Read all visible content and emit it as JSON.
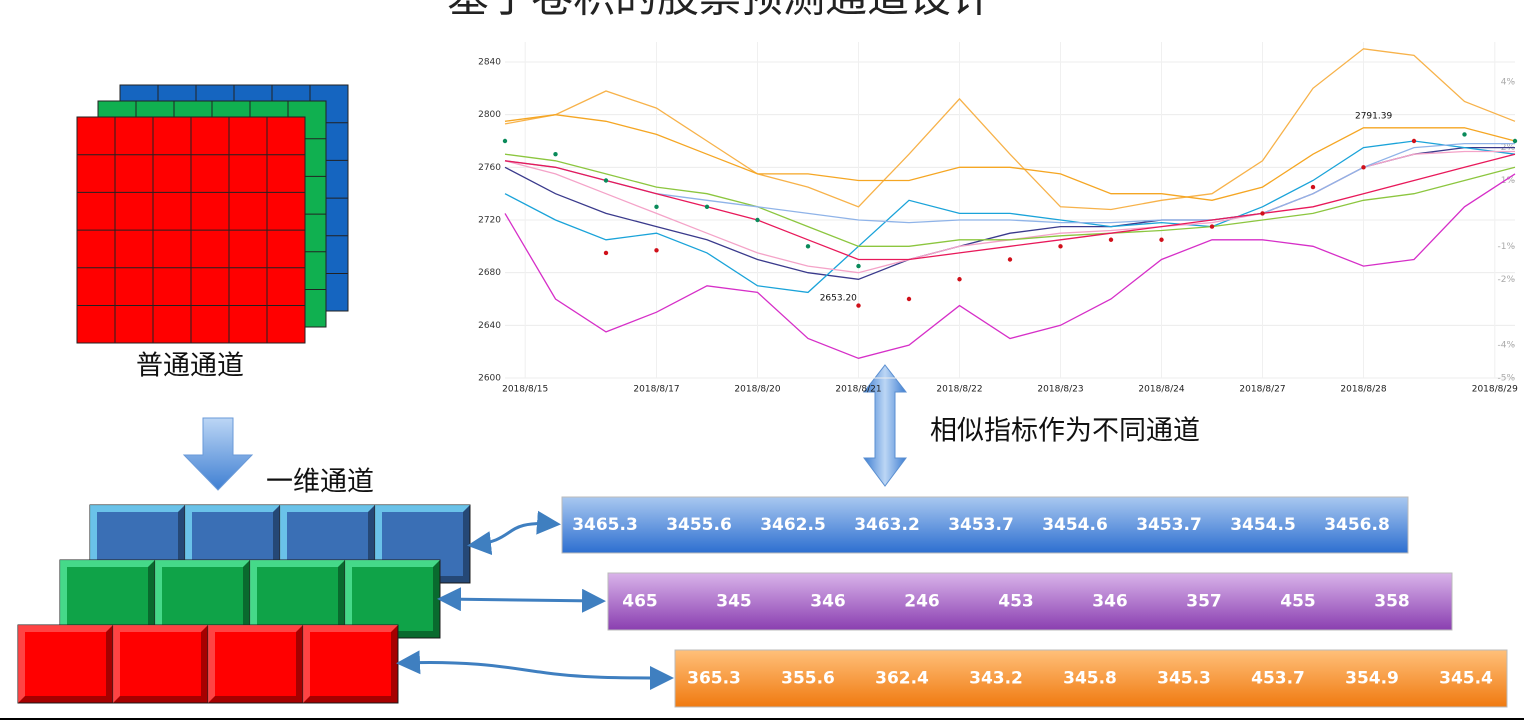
{
  "title": "基于卷积的股票预测通道设计",
  "labels": {
    "normal": "普通通道",
    "one_dim": "一维通道",
    "similar": "相似指标作为不同通道"
  },
  "chart_data": {
    "type": "line",
    "x": [
      0,
      5,
      10,
      15,
      20,
      25,
      30,
      35,
      40,
      45,
      50,
      55,
      60,
      65,
      70,
      75,
      80,
      85,
      90,
      95,
      100
    ],
    "xlim": [
      0,
      100
    ],
    "xticks": [
      {
        "value": 2,
        "label": "2018/8/15"
      },
      {
        "value": 15,
        "label": "2018/8/17"
      },
      {
        "value": 25,
        "label": "2018/8/20"
      },
      {
        "value": 35,
        "label": "2018/8/21"
      },
      {
        "value": 45,
        "label": "2018/8/22"
      },
      {
        "value": 55,
        "label": "2018/8/23"
      },
      {
        "value": 65,
        "label": "2018/8/24"
      },
      {
        "value": 75,
        "label": "2018/8/27"
      },
      {
        "value": 85,
        "label": "2018/8/28"
      },
      {
        "value": 98,
        "label": "2018/8/29"
      }
    ],
    "ylim": [
      2600,
      2840
    ],
    "yticks": [
      2600,
      2640,
      2680,
      2720,
      2760,
      2800,
      2840
    ],
    "y2lim": [
      -5,
      4.6
    ],
    "y2ticks": [
      {
        "value": -5,
        "label": "-5%"
      },
      {
        "value": -4,
        "label": "-4%"
      },
      {
        "value": -2,
        "label": "-2%"
      },
      {
        "value": -1,
        "label": "-1%"
      },
      {
        "value": 1,
        "label": "1%"
      },
      {
        "value": 2,
        "label": "2%"
      },
      {
        "value": 4,
        "label": "4%"
      }
    ],
    "grid": true,
    "series": [
      {
        "color": "#f7b24a",
        "values": [
          2793,
          2800,
          2818,
          2805,
          2780,
          2755,
          2745,
          2730,
          2770,
          2812,
          2770,
          2730,
          2728,
          2735,
          2740,
          2765,
          2820,
          2850,
          2845,
          2810,
          2795
        ]
      },
      {
        "color": "#f5a623",
        "values": [
          2795,
          2800,
          2795,
          2785,
          2770,
          2755,
          2755,
          2750,
          2750,
          2760,
          2760,
          2755,
          2740,
          2740,
          2735,
          2745,
          2770,
          2790,
          2790,
          2790,
          2780
        ]
      },
      {
        "color": "#d62fc8",
        "values": [
          2725,
          2660,
          2635,
          2650,
          2670,
          2665,
          2630,
          2615,
          2625,
          2655,
          2630,
          2640,
          2660,
          2690,
          2705,
          2705,
          2700,
          2685,
          2690,
          2730,
          2755
        ]
      },
      {
        "color": "#3a3a8c",
        "values": [
          2760,
          2740,
          2725,
          2715,
          2705,
          2690,
          2680,
          2675,
          2690,
          2700,
          2710,
          2715,
          2715,
          2720,
          2720,
          2725,
          2740,
          2760,
          2770,
          2775,
          2775
        ]
      },
      {
        "color": "#1aa3d9",
        "values": [
          2740,
          2720,
          2705,
          2710,
          2695,
          2670,
          2665,
          2700,
          2735,
          2725,
          2725,
          2720,
          2715,
          2718,
          2715,
          2730,
          2750,
          2775,
          2780,
          2775,
          2770
        ]
      },
      {
        "color": "#f4a3c8",
        "values": [
          2765,
          2755,
          2740,
          2725,
          2710,
          2695,
          2685,
          2680,
          2690,
          2700,
          2705,
          2710,
          2712,
          2715,
          2718,
          2725,
          2740,
          2760,
          2770,
          2772,
          2772
        ]
      },
      {
        "color": "#8cc63f",
        "values": [
          2770,
          2765,
          2755,
          2745,
          2740,
          2730,
          2715,
          2700,
          2700,
          2705,
          2705,
          2708,
          2710,
          2712,
          2715,
          2720,
          2725,
          2735,
          2740,
          2750,
          2760
        ]
      },
      {
        "color": "#8fb3e8",
        "values": [
          2765,
          2760,
          2750,
          2740,
          2735,
          2730,
          2725,
          2720,
          2718,
          2720,
          2720,
          2718,
          2718,
          2720,
          2720,
          2725,
          2740,
          2760,
          2775,
          2778,
          2778
        ]
      },
      {
        "color": "#e8195a",
        "values": [
          2765,
          2760,
          2750,
          2740,
          2730,
          2720,
          2705,
          2690,
          2690,
          2695,
          2700,
          2705,
          2710,
          2715,
          2720,
          2725,
          2730,
          2740,
          2750,
          2760,
          2770
        ]
      },
      {
        "color": "#0a8a5a",
        "dots": true,
        "values": [
          2780,
          2770,
          2750,
          2730,
          2730,
          2720,
          2700,
          2685,
          null,
          null,
          null,
          null,
          null,
          null,
          null,
          null,
          null,
          null,
          null,
          2785,
          2780
        ]
      },
      {
        "color": "#d0101a",
        "dots": true,
        "values": [
          null,
          null,
          2695,
          2697,
          null,
          null,
          null,
          2655,
          2660,
          2675,
          2690,
          2700,
          2705,
          2705,
          2715,
          2725,
          2745,
          2760,
          2780,
          null,
          null
        ]
      }
    ],
    "annotations": [
      {
        "text": "2791.39",
        "x": 86,
        "y": 2791.39
      },
      {
        "text": "2653.20",
        "x": 33,
        "y": 2653.2
      }
    ]
  },
  "rows": [
    [
      3465.3,
      3455.6,
      3462.5,
      3463.2,
      3453.7,
      3454.6,
      3453.7,
      3454.5,
      3456.8
    ],
    [
      465,
      345,
      346,
      246,
      453,
      346,
      357,
      455,
      358
    ],
    [
      365.3,
      355.6,
      362.4,
      343.2,
      345.8,
      345.3,
      453.7,
      354.9,
      345.4
    ]
  ]
}
